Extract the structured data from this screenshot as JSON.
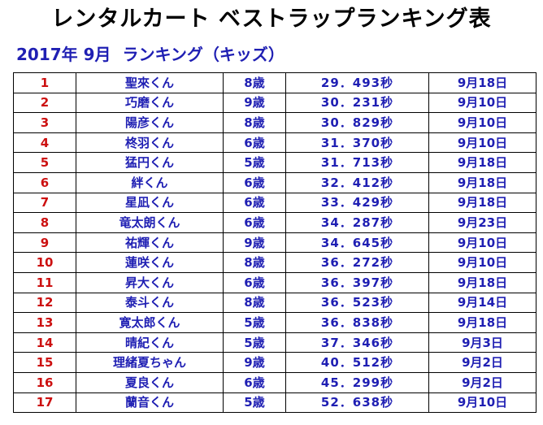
{
  "title": "レンタルカート ベストラップランキング表",
  "subtitle": "2017年 9月  ランキング（キッズ）",
  "colors": {
    "rank": "#cc1010",
    "text": "#1f1fb3",
    "title": "#000000"
  },
  "rows": [
    {
      "rank": "1",
      "name": "聖來くん",
      "age": "8歳",
      "time": "29．493秒",
      "date": "9月18日"
    },
    {
      "rank": "2",
      "name": "巧磨くん",
      "age": "9歳",
      "time": "30．231秒",
      "date": "9月10日"
    },
    {
      "rank": "3",
      "name": "陽彦くん",
      "age": "8歳",
      "time": "30．829秒",
      "date": "9月10日"
    },
    {
      "rank": "4",
      "name": "柊羽くん",
      "age": "6歳",
      "time": "31．370秒",
      "date": "9月10日"
    },
    {
      "rank": "5",
      "name": "猛円くん",
      "age": "5歳",
      "time": "31．713秒",
      "date": "9月18日"
    },
    {
      "rank": "6",
      "name": "絆くん",
      "age": "6歳",
      "time": "32．412秒",
      "date": "9月18日"
    },
    {
      "rank": "7",
      "name": "星凪くん",
      "age": "6歳",
      "time": "33．429秒",
      "date": "9月18日"
    },
    {
      "rank": "8",
      "name": "竜太朗くん",
      "age": "6歳",
      "time": "34．287秒",
      "date": "9月23日"
    },
    {
      "rank": "9",
      "name": "祐輝くん",
      "age": "9歳",
      "time": "34．645秒",
      "date": "9月10日"
    },
    {
      "rank": "10",
      "name": "蓮咲くん",
      "age": "8歳",
      "time": "36．272秒",
      "date": "9月10日"
    },
    {
      "rank": "11",
      "name": "昇大くん",
      "age": "6歳",
      "time": "36．397秒",
      "date": "9月18日"
    },
    {
      "rank": "12",
      "name": "泰斗くん",
      "age": "8歳",
      "time": "36．523秒",
      "date": "9月14日"
    },
    {
      "rank": "13",
      "name": "寛太郎くん",
      "age": "5歳",
      "time": "36．838秒",
      "date": "9月18日"
    },
    {
      "rank": "14",
      "name": "晴紀くん",
      "age": "5歳",
      "time": "37．346秒",
      "date": "9月3日"
    },
    {
      "rank": "15",
      "name": "理緒夏ちゃん",
      "age": "9歳",
      "time": "40．512秒",
      "date": "9月2日"
    },
    {
      "rank": "16",
      "name": "夏良くん",
      "age": "6歳",
      "time": "45．299秒",
      "date": "9月2日"
    },
    {
      "rank": "17",
      "name": "蘭音くん",
      "age": "5歳",
      "time": "52．638秒",
      "date": "9月10日"
    }
  ]
}
